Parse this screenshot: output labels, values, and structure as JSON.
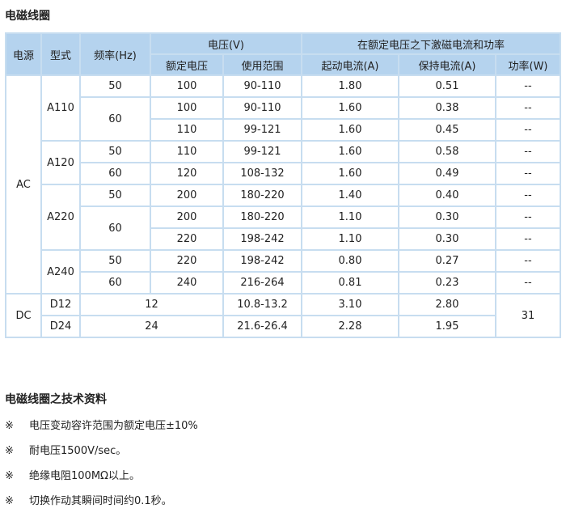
{
  "title": "电磁线圈",
  "table": {
    "h_source": "电源",
    "h_model": "型式",
    "h_freq": "频率(Hz)",
    "h_voltage": "电压(V)",
    "h_current": "在额定电压之下激磁电流和功率",
    "h_rated": "额定电压",
    "h_range": "使用范围",
    "h_start": "起动电流(A)",
    "h_hold": "保持电流(A)",
    "h_power": "功率(W)",
    "ac": "AC",
    "dc": "DC",
    "models": [
      "A110",
      "A120",
      "A220",
      "A240",
      "D12",
      "D24"
    ],
    "rows": [
      {
        "freq": "50",
        "rated": "100",
        "range": "90-110",
        "start": "1.80",
        "hold": "0.51",
        "power": "--"
      },
      {
        "freq": "60",
        "rated": "100",
        "range": "90-110",
        "start": "1.60",
        "hold": "0.38",
        "power": "--"
      },
      {
        "rated": "110",
        "range": "99-121",
        "start": "1.60",
        "hold": "0.45",
        "power": "--"
      },
      {
        "freq": "50",
        "rated": "110",
        "range": "99-121",
        "start": "1.60",
        "hold": "0.58",
        "power": "--"
      },
      {
        "freq": "60",
        "rated": "120",
        "range": "108-132",
        "start": "1.60",
        "hold": "0.49",
        "power": "--"
      },
      {
        "freq": "50",
        "rated": "200",
        "range": "180-220",
        "start": "1.40",
        "hold": "0.40",
        "power": "--"
      },
      {
        "freq": "60",
        "rated": "200",
        "range": "180-220",
        "start": "1.10",
        "hold": "0.30",
        "power": "--"
      },
      {
        "rated": "220",
        "range": "198-242",
        "start": "1.10",
        "hold": "0.30",
        "power": "--"
      },
      {
        "freq": "50",
        "rated": "220",
        "range": "198-242",
        "start": "0.80",
        "hold": "0.27",
        "power": "--"
      },
      {
        "freq": "60",
        "rated": "240",
        "range": "216-264",
        "start": "0.81",
        "hold": "0.23",
        "power": "--"
      },
      {
        "rated": "12",
        "range": "10.8-13.2",
        "start": "3.10",
        "hold": "2.80",
        "power": "31"
      },
      {
        "rated": "24",
        "range": "21.6-26.4",
        "start": "2.28",
        "hold": "1.95"
      }
    ]
  },
  "tech_title": "电磁线圈之技术资料",
  "notes": [
    {
      "mark": "※",
      "text": "电压变动容许范围为额定电压±10%"
    },
    {
      "mark": "※",
      "text": "耐电压1500V/sec。"
    },
    {
      "mark": "※",
      "text": "绝缘电阻100MΩ以上。"
    },
    {
      "mark": "※",
      "text": "切换作动其瞬间时间约0.1秒。"
    }
  ]
}
